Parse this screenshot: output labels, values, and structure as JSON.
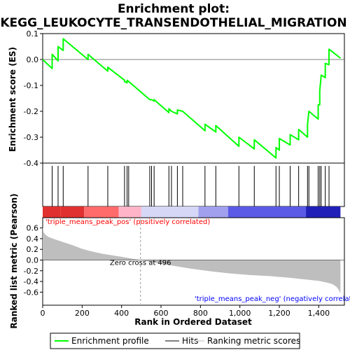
{
  "chart_data": {
    "type": "line",
    "title_line1": "Enrichment plot:",
    "title_line2": "KEGG_LEUKOCYTE_TRANSENDOTHELIAL_MIGRATION",
    "xlabel": "Rank in Ordered Dataset",
    "es_ylabel": "Enrichment score (ES)",
    "metric_ylabel": "Ranked list metric (Pearson)",
    "xlim": [
      0,
      1530
    ],
    "es_ylim": [
      -0.4,
      0.1
    ],
    "metric_ylim": [
      -0.7,
      0.7
    ],
    "x_ticks": [
      0,
      200,
      400,
      600,
      800,
      1000,
      1200,
      1400
    ],
    "x_tick_labels": [
      "0",
      "200",
      "400",
      "600",
      "800",
      "1,000",
      "1,200",
      "1,400"
    ],
    "es_ticks": [
      0.1,
      0.0,
      -0.1,
      -0.2,
      -0.3,
      -0.4
    ],
    "es_tick_labels": [
      "0.1",
      "0.0",
      "-0.1",
      "-0.2",
      "-0.3",
      "-0.4"
    ],
    "metric_ticks": [
      0.6,
      0.4,
      0.2,
      0.0,
      -0.2,
      -0.4,
      -0.6
    ],
    "metric_tick_labels": [
      "0.6",
      "0.4",
      "0.2",
      "0.0",
      "-0.2",
      "-0.4",
      "-0.6"
    ],
    "hits": [
      48,
      78,
      104,
      230,
      330,
      415,
      428,
      436,
      543,
      552,
      565,
      640,
      653,
      683,
      710,
      823,
      878,
      995,
      1073,
      1183,
      1200,
      1255,
      1298,
      1343,
      1350,
      1397,
      1405,
      1412,
      1433,
      1452
    ],
    "es_profile": {
      "x": [
        0,
        48,
        48,
        78,
        78,
        104,
        104,
        230,
        230,
        330,
        330,
        415,
        415,
        428,
        428,
        436,
        436,
        543,
        543,
        552,
        552,
        565,
        565,
        640,
        640,
        653,
        653,
        683,
        683,
        710,
        710,
        823,
        823,
        878,
        878,
        995,
        995,
        1073,
        1073,
        1183,
        1183,
        1200,
        1200,
        1255,
        1255,
        1298,
        1298,
        1343,
        1343,
        1350,
        1350,
        1397,
        1397,
        1405,
        1405,
        1412,
        1412,
        1433,
        1433,
        1452,
        1452,
        1510
      ],
      "y": [
        0.0,
        -0.035,
        0.02,
        -0.005,
        0.05,
        0.035,
        0.08,
        0.0,
        0.02,
        -0.045,
        -0.03,
        -0.08,
        -0.085,
        -0.09,
        -0.08,
        -0.085,
        -0.085,
        -0.155,
        -0.155,
        -0.155,
        -0.155,
        -0.16,
        -0.155,
        -0.205,
        -0.19,
        -0.2,
        -0.2,
        -0.21,
        -0.195,
        -0.2,
        -0.2,
        -0.275,
        -0.25,
        -0.28,
        -0.255,
        -0.335,
        -0.3,
        -0.345,
        -0.31,
        -0.38,
        -0.34,
        -0.35,
        -0.305,
        -0.33,
        -0.29,
        -0.31,
        -0.27,
        -0.3,
        -0.25,
        -0.2,
        -0.2,
        -0.23,
        -0.175,
        -0.175,
        -0.12,
        -0.065,
        -0.06,
        -0.07,
        -0.015,
        -0.02,
        0.04,
        0.005
      ]
    },
    "metric_profile": {
      "x": [
        0,
        5,
        15,
        30,
        60,
        100,
        150,
        200,
        250,
        300,
        350,
        400,
        450,
        496,
        550,
        650,
        750,
        850,
        950,
        1050,
        1150,
        1250,
        1300,
        1350,
        1400,
        1440,
        1470,
        1490,
        1500,
        1510
      ],
      "y": [
        0.62,
        0.52,
        0.47,
        0.43,
        0.39,
        0.34,
        0.28,
        0.21,
        0.16,
        0.12,
        0.09,
        0.06,
        0.03,
        0.0,
        -0.04,
        -0.1,
        -0.16,
        -0.21,
        -0.25,
        -0.28,
        -0.3,
        -0.33,
        -0.35,
        -0.37,
        -0.39,
        -0.42,
        -0.45,
        -0.5,
        -0.55,
        -0.62
      ]
    },
    "zero_cross_label": "Zero cross at 496",
    "pos_label": "'triple_means_peak_pos' (positively correlated)",
    "neg_label": "'triple_means_peak_neg' (negatively correlated)",
    "legend": [
      "Enrichment profile",
      "Hits",
      "Ranking metric scores"
    ],
    "colors": {
      "es_line": "#00ff00",
      "hit_line": "#000000",
      "metric_fill": "#bebebe",
      "pos_label": "#ff0000",
      "neg_label": "#0000ff",
      "band": [
        "#e03030",
        "#ff6a6a",
        "#ffb4c8",
        "#d6d6f6",
        "#a0a0ee",
        "#5a5ae6",
        "#2020b8"
      ]
    },
    "heat_band_breaks": [
      0,
      90,
      210,
      385,
      500,
      790,
      940,
      1335,
      1510
    ]
  }
}
